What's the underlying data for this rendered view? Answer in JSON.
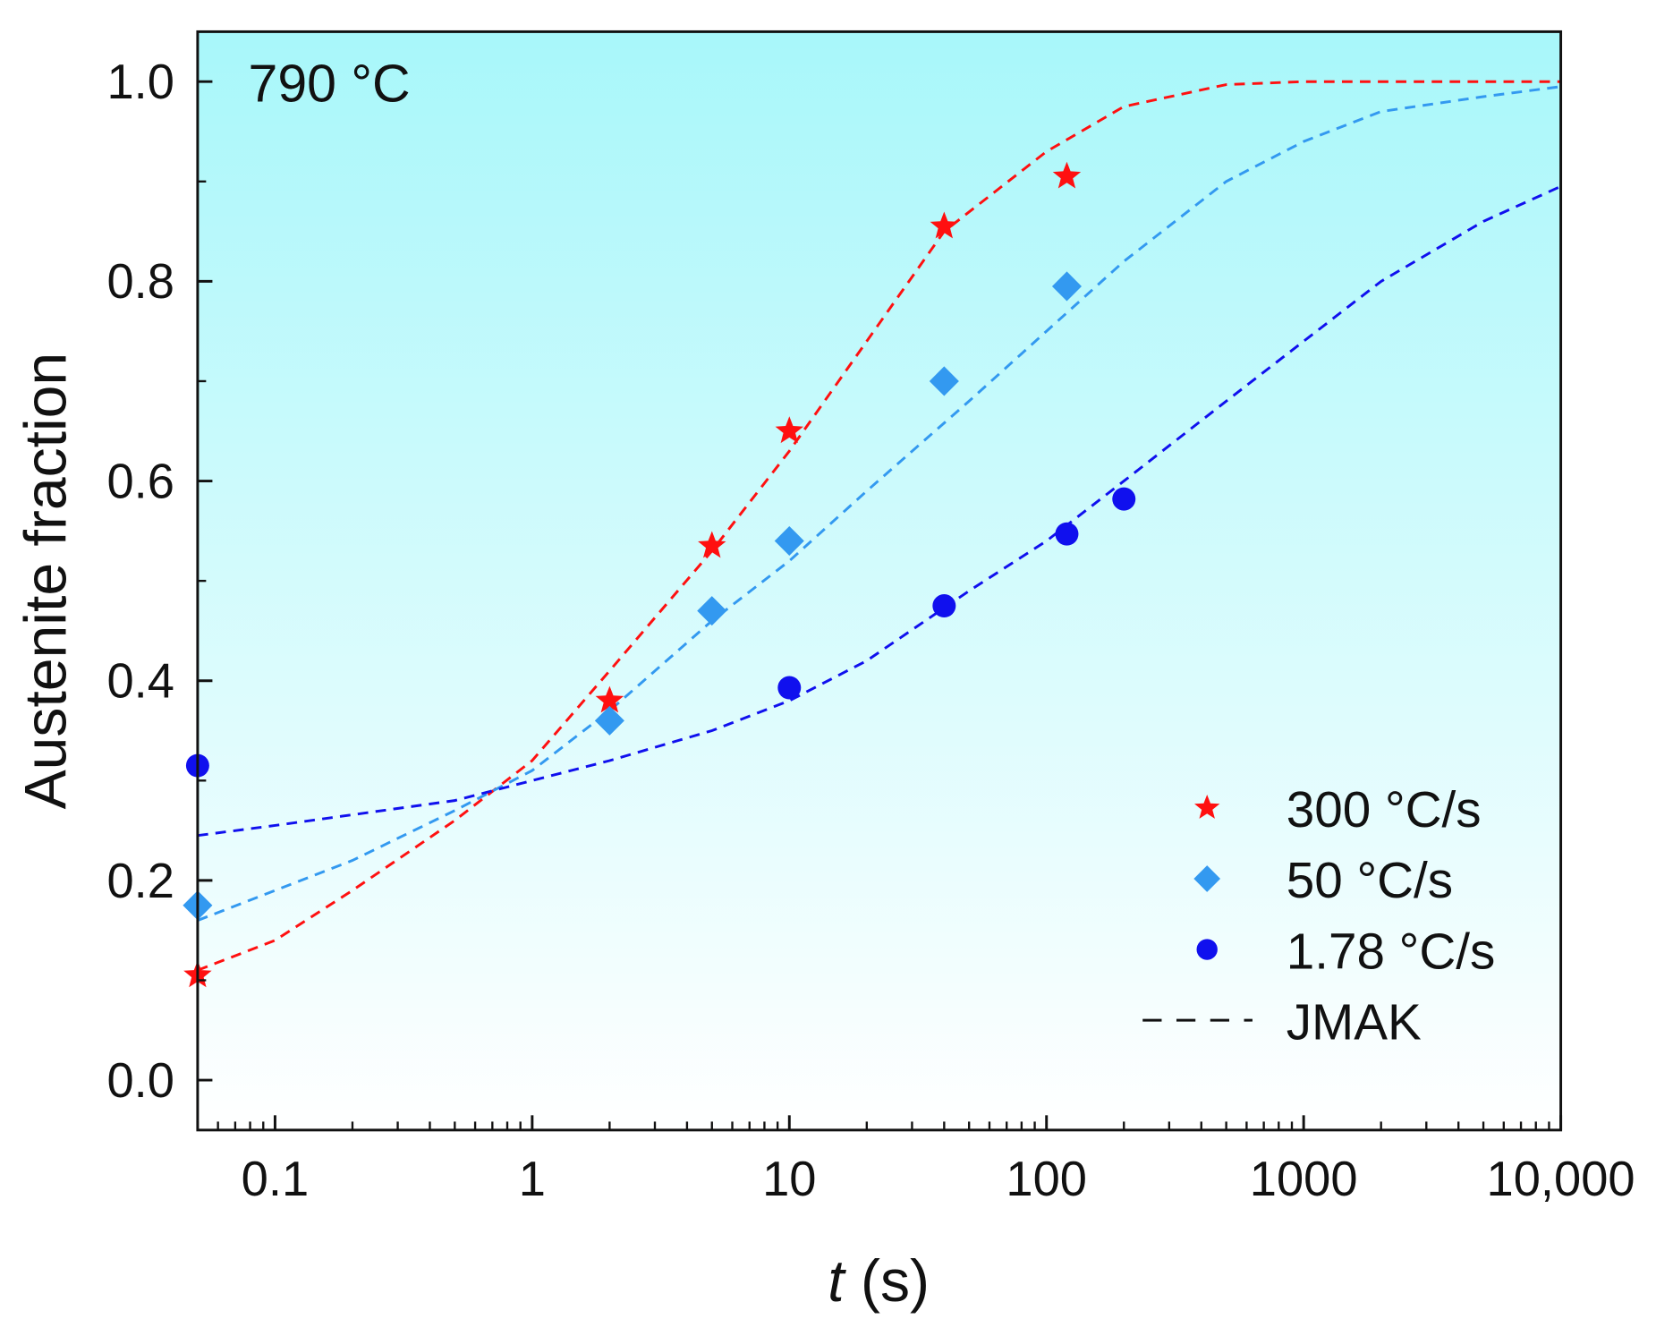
{
  "chart_data": {
    "type": "scatter",
    "annotation": "790 °C",
    "xlabel_italic": "t",
    "xlabel_rest": " (s)",
    "ylabel": "Austenite fraction",
    "xscale": "log",
    "xlim": [
      0.05,
      10000
    ],
    "ylim": [
      -0.05,
      1.05
    ],
    "xticks": [
      {
        "v": 0.1,
        "label": "0.1"
      },
      {
        "v": 1,
        "label": "1"
      },
      {
        "v": 10,
        "label": "10"
      },
      {
        "v": 100,
        "label": "100"
      },
      {
        "v": 1000,
        "label": "1000"
      },
      {
        "v": 10000,
        "label": "10,000"
      }
    ],
    "yticks": [
      {
        "v": 0,
        "label": "0.0"
      },
      {
        "v": 0.2,
        "label": "0.2"
      },
      {
        "v": 0.4,
        "label": "0.4"
      },
      {
        "v": 0.6,
        "label": "0.6"
      },
      {
        "v": 0.8,
        "label": "0.8"
      },
      {
        "v": 1.0,
        "label": "1.0"
      }
    ],
    "legend_position": "bottom-right",
    "series": [
      {
        "name": "300 °C/s",
        "marker": "star",
        "color": "#ff1010",
        "x": [
          0.05,
          2,
          5,
          10,
          40,
          120
        ],
        "y": [
          0.105,
          0.38,
          0.535,
          0.65,
          0.855,
          0.905
        ],
        "fit_x": [
          0.05,
          0.1,
          0.2,
          0.5,
          1,
          2,
          5,
          10,
          20,
          40,
          100,
          200,
          500,
          1000,
          10000
        ],
        "fit_y": [
          0.11,
          0.14,
          0.19,
          0.26,
          0.32,
          0.41,
          0.53,
          0.63,
          0.74,
          0.85,
          0.93,
          0.975,
          0.997,
          1.0,
          1.0
        ]
      },
      {
        "name": "50 °C/s",
        "marker": "diamond",
        "color": "#3399f0",
        "x": [
          0.05,
          2,
          5,
          10,
          40,
          120
        ],
        "y": [
          0.175,
          0.36,
          0.47,
          0.54,
          0.7,
          0.795
        ],
        "fit_x": [
          0.05,
          0.1,
          0.2,
          0.5,
          1,
          2,
          5,
          10,
          20,
          50,
          100,
          200,
          500,
          1000,
          2000,
          5000,
          10000
        ],
        "fit_y": [
          0.16,
          0.19,
          0.22,
          0.27,
          0.31,
          0.37,
          0.46,
          0.52,
          0.59,
          0.68,
          0.75,
          0.82,
          0.9,
          0.94,
          0.97,
          0.985,
          0.995
        ]
      },
      {
        "name": "1.78 °C/s",
        "marker": "circle",
        "color": "#1010ee",
        "x": [
          0.05,
          10,
          40,
          120,
          200
        ],
        "y": [
          0.315,
          0.393,
          0.475,
          0.547,
          0.582
        ],
        "fit_x": [
          0.05,
          0.1,
          0.5,
          1,
          2,
          5,
          10,
          20,
          50,
          100,
          200,
          500,
          1000,
          2000,
          5000,
          10000
        ],
        "fit_y": [
          0.245,
          0.255,
          0.28,
          0.3,
          0.32,
          0.35,
          0.38,
          0.42,
          0.49,
          0.54,
          0.6,
          0.68,
          0.74,
          0.8,
          0.86,
          0.895
        ]
      }
    ],
    "fit_legend": "JMAK",
    "background_top": "#a8f7fa",
    "background_bottom": "#ffffff"
  }
}
